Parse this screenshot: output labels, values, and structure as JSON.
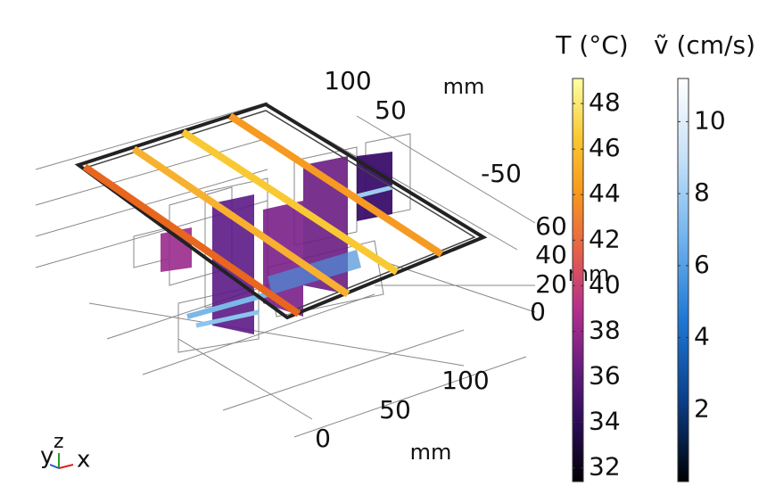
{
  "colorbars": [
    {
      "title": "T (°C)",
      "range": [
        31.4,
        49.1
      ],
      "ticks": [
        32,
        34,
        36,
        38,
        40,
        42,
        44,
        46,
        48
      ],
      "colors": [
        "#000004",
        "#2b0b57",
        "#6a1c81",
        "#b52f8c",
        "#e8604a",
        "#f8961c",
        "#f9c933",
        "#fcffa4"
      ]
    },
    {
      "title": "ṽ (cm/s)",
      "range": [
        0,
        11.2
      ],
      "ticks": [
        2,
        4,
        6,
        8,
        10
      ],
      "colors": [
        "#000000",
        "#0b3e8a",
        "#1f77d4",
        "#6fb2ee",
        "#c5e0f7",
        "#ffffff"
      ]
    }
  ],
  "axes": {
    "back": {
      "ticks": [
        100,
        50,
        -50
      ],
      "unit": "mm"
    },
    "vertical": {
      "ticks": [
        60,
        40,
        20,
        0
      ],
      "unit": "mm"
    },
    "front": {
      "ticks": [
        100,
        50,
        0
      ],
      "unit": "mm"
    }
  },
  "triad": {
    "y": "y",
    "z": "z",
    "x": "x"
  }
}
